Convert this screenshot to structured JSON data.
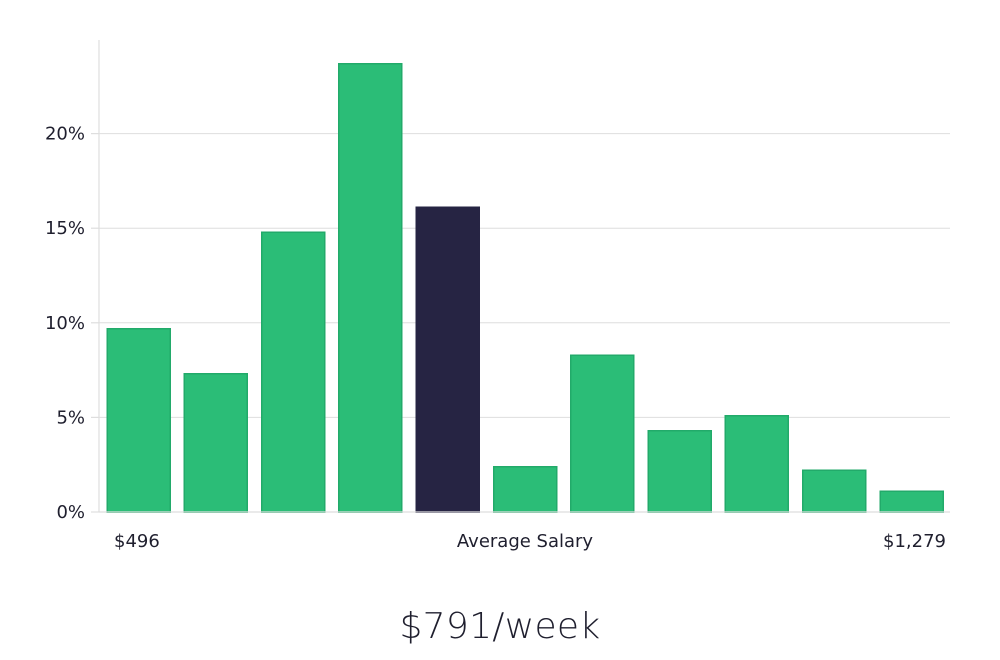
{
  "chart_data": {
    "type": "bar",
    "values": [
      9.7,
      7.3,
      14.8,
      23.7,
      16.1,
      2.4,
      8.3,
      4.3,
      5.1,
      2.2,
      1.1
    ],
    "highlight_index": 4,
    "y_ticks": [
      0,
      5,
      10,
      15,
      20
    ],
    "y_tick_labels": [
      "0%",
      "5%",
      "10%",
      "15%",
      "20%"
    ],
    "ylim": [
      0,
      25
    ],
    "grid": true,
    "x_label_left": "$496",
    "x_label_center": "Average Salary",
    "x_label_right": "$1,279",
    "colors": {
      "bar": "#2bbd77",
      "bar_border": "#22aa6a",
      "highlight": "#262443",
      "grid": "#dedede"
    }
  },
  "headline": "$791/week"
}
